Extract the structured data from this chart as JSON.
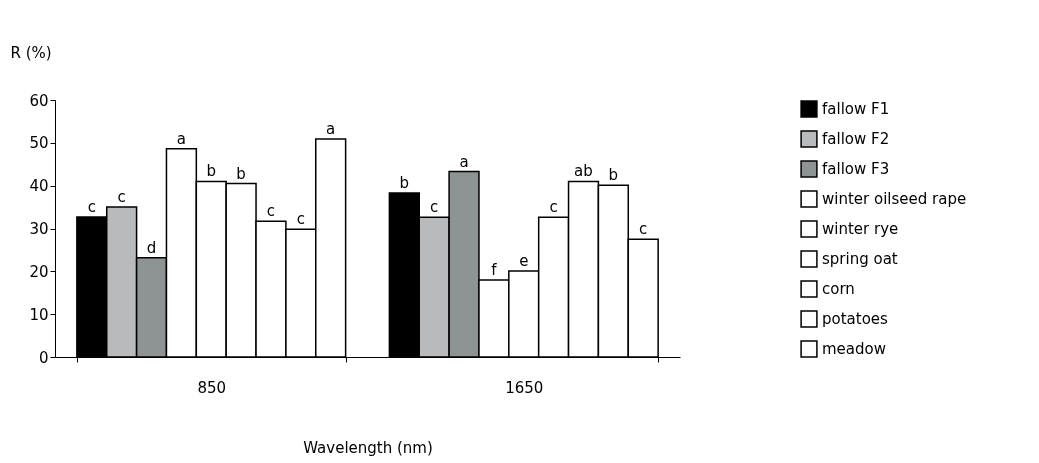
{
  "chart_data": {
    "type": "bar",
    "ylabel": "R (%)",
    "xlabel": "Wavelength (nm)",
    "categories": [
      "850",
      "1650"
    ],
    "ylim": [
      0,
      60
    ],
    "yticks": [
      0,
      10,
      20,
      30,
      40,
      50,
      60
    ],
    "grid": false,
    "legend": "right",
    "series": [
      {
        "name": "fallow F1",
        "color": "#000000",
        "values": [
          32.7,
          38.3
        ],
        "value_labels": [
          "c",
          "b"
        ]
      },
      {
        "name": "fallow F2",
        "color": "#b8babc",
        "values": [
          35.0,
          32.6
        ],
        "value_labels": [
          "c",
          "c"
        ]
      },
      {
        "name": "fallow F3",
        "color": "#8e9394",
        "values": [
          23.2,
          43.3
        ],
        "value_labels": [
          "d",
          "a"
        ]
      },
      {
        "name": "winter oilseed rape",
        "color": "#ffffff",
        "values": [
          48.6,
          18.0
        ],
        "value_labels": [
          "a",
          "f"
        ]
      },
      {
        "name": "winter rye",
        "color": "#ffffff",
        "values": [
          41.0,
          20.1
        ],
        "value_labels": [
          "b",
          "e"
        ]
      },
      {
        "name": "spring oat",
        "color": "#ffffff",
        "values": [
          40.5,
          32.6
        ],
        "value_labels": [
          "b",
          "c"
        ]
      },
      {
        "name": "corn",
        "color": "#ffffff",
        "values": [
          31.7,
          41.0
        ],
        "value_labels": [
          "c",
          "ab"
        ]
      },
      {
        "name": "potatoes",
        "color": "#ffffff",
        "values": [
          29.8,
          40.1
        ],
        "value_labels": [
          "c",
          "b"
        ]
      },
      {
        "name": "meadow",
        "color": "#ffffff",
        "values": [
          50.9,
          27.5
        ],
        "value_labels": [
          "a",
          "c"
        ]
      }
    ]
  }
}
